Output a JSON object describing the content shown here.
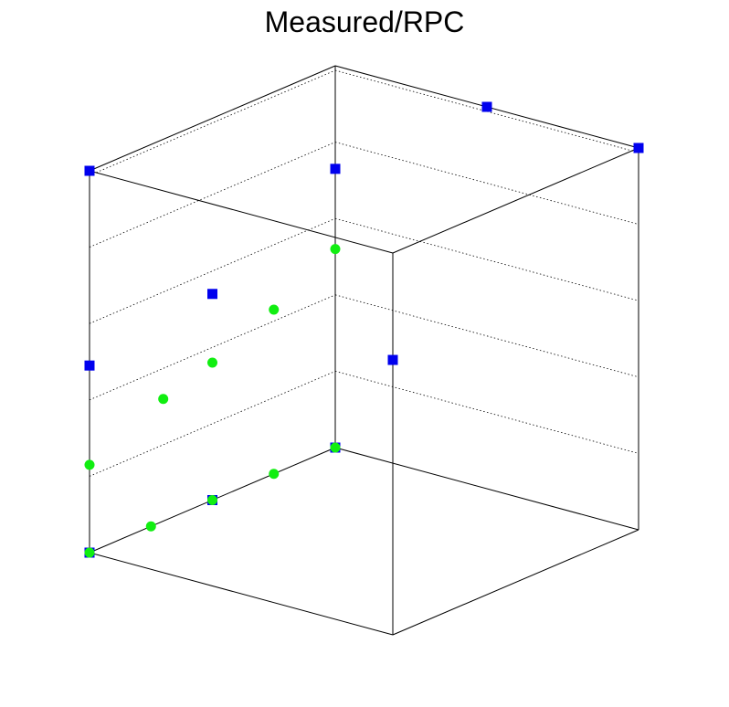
{
  "chart_data": {
    "type": "scatter",
    "title": "Measured/RPC",
    "xlabel": "",
    "ylabel": "",
    "zlabel": "",
    "view": "3d-box",
    "grid": true,
    "series": [
      {
        "marker": "square",
        "color": "#0000ee",
        "points": [
          [
            0,
            0,
            0
          ],
          [
            0,
            0.5,
            0
          ],
          [
            0,
            1,
            0
          ],
          [
            0.5,
            1,
            1
          ],
          [
            1,
            1,
            1
          ],
          [
            0,
            0,
            1
          ],
          [
            1,
            0,
            0.72
          ],
          [
            0,
            0,
            0.49
          ],
          [
            0,
            0.5,
            0.54
          ],
          [
            0,
            1,
            0.73
          ]
        ]
      },
      {
        "marker": "circle",
        "color": "#11ee11",
        "points": [
          [
            0,
            0,
            0
          ],
          [
            0,
            0.25,
            0
          ],
          [
            0,
            0.5,
            0
          ],
          [
            0,
            0.75,
            0
          ],
          [
            0,
            1,
            0
          ],
          [
            0,
            0,
            0.23
          ],
          [
            0,
            0.3,
            0.32
          ],
          [
            0,
            0.5,
            0.36
          ],
          [
            0,
            0.75,
            0.43
          ],
          [
            0,
            1,
            0.52
          ]
        ]
      }
    ]
  }
}
